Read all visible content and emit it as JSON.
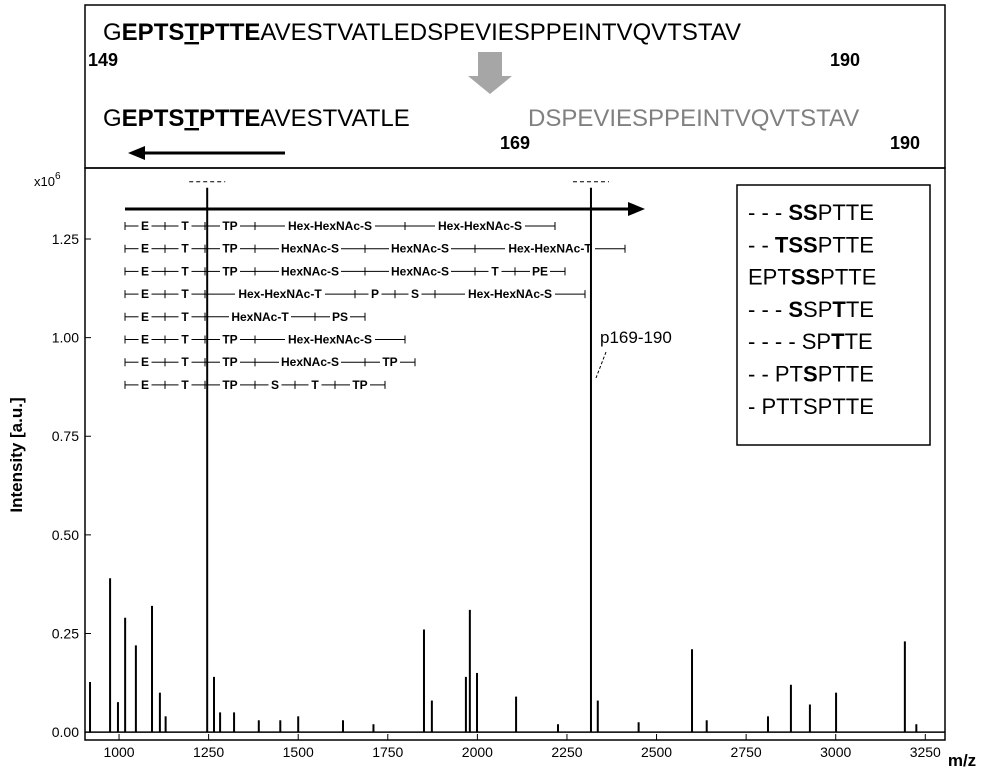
{
  "sequence_panel": {
    "full": {
      "segments": [
        {
          "text": "G",
          "bold": false
        },
        {
          "text": "EPTS",
          "bold": true
        },
        {
          "text": "T",
          "bold": true,
          "underline": true
        },
        {
          "text": "PTTE",
          "bold": true
        },
        {
          "text": "AVESTVATLEDSPEVIESPPEINTVQVTSTAV",
          "bold": false
        }
      ],
      "start": "149",
      "end": "190"
    },
    "nterm": {
      "segments": [
        {
          "text": "G",
          "bold": false
        },
        {
          "text": "EPTS",
          "bold": true
        },
        {
          "text": "T",
          "bold": true,
          "underline": true
        },
        {
          "text": "PTTE",
          "bold": true
        },
        {
          "text": "AVESTVATLE",
          "bold": false
        }
      ]
    },
    "cterm": {
      "text": "DSPEVIESPPEINTVQVTSTAV",
      "start": "169",
      "end": "190"
    }
  },
  "chart_data": {
    "type": "spectrum",
    "multiplier": {
      "base": "x10",
      "exponent": "6"
    },
    "ylabel": "Intensity [a.u.]",
    "xlabel": "m/z",
    "color": "#000000",
    "x": [
      919,
      975,
      997,
      1017,
      1047,
      1092,
      1114,
      1130,
      1246,
      1265,
      1282,
      1321,
      1390,
      1450,
      1500,
      1625,
      1710,
      1851,
      1873,
      1968,
      1979,
      1999,
      2108,
      2225,
      2317,
      2336,
      2450,
      2599,
      2640,
      2811,
      2875,
      2928,
      3001,
      3193,
      3225
    ],
    "values": [
      0.127,
      0.39,
      0.076,
      0.29,
      0.22,
      0.32,
      0.1,
      0.04,
      1.38,
      0.14,
      0.05,
      0.05,
      0.03,
      0.03,
      0.04,
      0.03,
      0.02,
      0.26,
      0.08,
      0.14,
      0.31,
      0.15,
      0.09,
      0.02,
      1.38,
      0.08,
      0.025,
      0.21,
      0.03,
      0.04,
      0.12,
      0.07,
      0.1,
      0.23,
      0.02
    ],
    "xlim": [
      905,
      3305
    ],
    "ylim": [
      -0.02,
      1.43
    ],
    "xticks": [
      1000,
      1250,
      1500,
      1750,
      2000,
      2250,
      2500,
      2750,
      3000,
      3250
    ],
    "yticks": [
      {
        "value": 0,
        "label": "0.00"
      },
      0.25,
      {
        "value": 0.5,
        "label": "0.50"
      },
      0.75,
      {
        "value": 1,
        "label": "1.00"
      },
      1.25
    ],
    "annotation": "p169-190",
    "fragment_ladders": [
      [
        "E",
        "T",
        "TP",
        "Hex-HexNAc-S",
        "Hex-HexNAc-S"
      ],
      [
        "E",
        "T",
        "TP",
        "HexNAc-S",
        "HexNAc-S",
        "Hex-HexNAc-T"
      ],
      [
        "E",
        "T",
        "TP",
        "HexNAc-S",
        "HexNAc-S",
        "T",
        "PE"
      ],
      [
        "E",
        "T",
        "Hex-HexNAc-T",
        "P",
        "S",
        "Hex-HexNAc-S"
      ],
      [
        "E",
        "T",
        "HexNAc-T",
        "PS"
      ],
      [
        "E",
        "T",
        "TP",
        "Hex-HexNAc-S"
      ],
      [
        "E",
        "T",
        "TP",
        "HexNAc-S",
        "TP"
      ],
      [
        "E",
        "T",
        "TP",
        "S",
        "T",
        "TP"
      ]
    ],
    "glycoforms": [
      [
        {
          "text": "- - - ",
          "bold": false
        },
        {
          "text": "SS",
          "bold": true
        },
        {
          "text": "PTTE",
          "bold": false
        }
      ],
      [
        {
          "text": "- - ",
          "bold": false
        },
        {
          "text": "TSS",
          "bold": true
        },
        {
          "text": "PTTE",
          "bold": false
        }
      ],
      [
        {
          "text": "EPT",
          "bold": false
        },
        {
          "text": "SS",
          "bold": true
        },
        {
          "text": "PTTE",
          "bold": false
        }
      ],
      [
        {
          "text": "- - - ",
          "bold": false
        },
        {
          "text": "S",
          "bold": true
        },
        {
          "text": "SP",
          "bold": false
        },
        {
          "text": "T",
          "bold": true
        },
        {
          "text": "TE",
          "bold": false
        }
      ],
      [
        {
          "text": "- - - - SP",
          "bold": false
        },
        {
          "text": "T",
          "bold": true
        },
        {
          "text": "TE",
          "bold": false
        }
      ],
      [
        {
          "text": "- - PT",
          "bold": false
        },
        {
          "text": "S",
          "bold": true
        },
        {
          "text": "PTTE",
          "bold": false
        }
      ],
      [
        {
          "text": "- PTTSPTTE",
          "bold": false
        }
      ]
    ]
  }
}
